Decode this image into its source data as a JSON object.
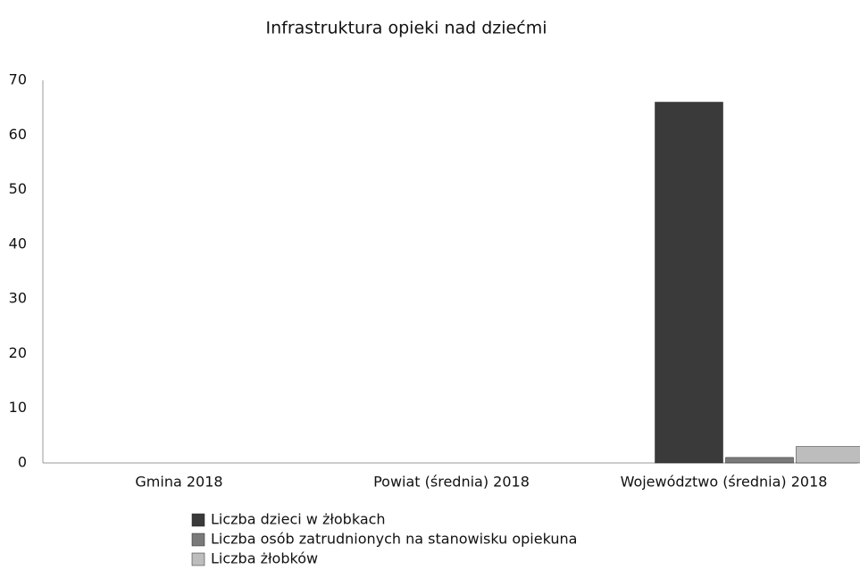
{
  "chart_data": {
    "type": "bar",
    "title": "Infrastruktura opieki nad dziećmi",
    "categories": [
      "Gmina 2018",
      "Powiat (średnia) 2018",
      "Województwo (średnia) 2018"
    ],
    "series": [
      {
        "name": "Liczba dzieci w żłobkach",
        "color": "#3a3a3a",
        "values": [
          0,
          0,
          66
        ]
      },
      {
        "name": "Liczba osób zatrudnionych na stanowisku opiekuna",
        "color": "#7a7a7a",
        "values": [
          0,
          0,
          1
        ]
      },
      {
        "name": "Liczba żłobków",
        "color": "#bdbdbd",
        "values": [
          0,
          0,
          3
        ]
      }
    ],
    "ylim": [
      0,
      70
    ],
    "yticks": [
      0,
      10,
      20,
      30,
      40,
      50,
      60,
      70
    ],
    "grid": false,
    "legend": "bottom"
  }
}
